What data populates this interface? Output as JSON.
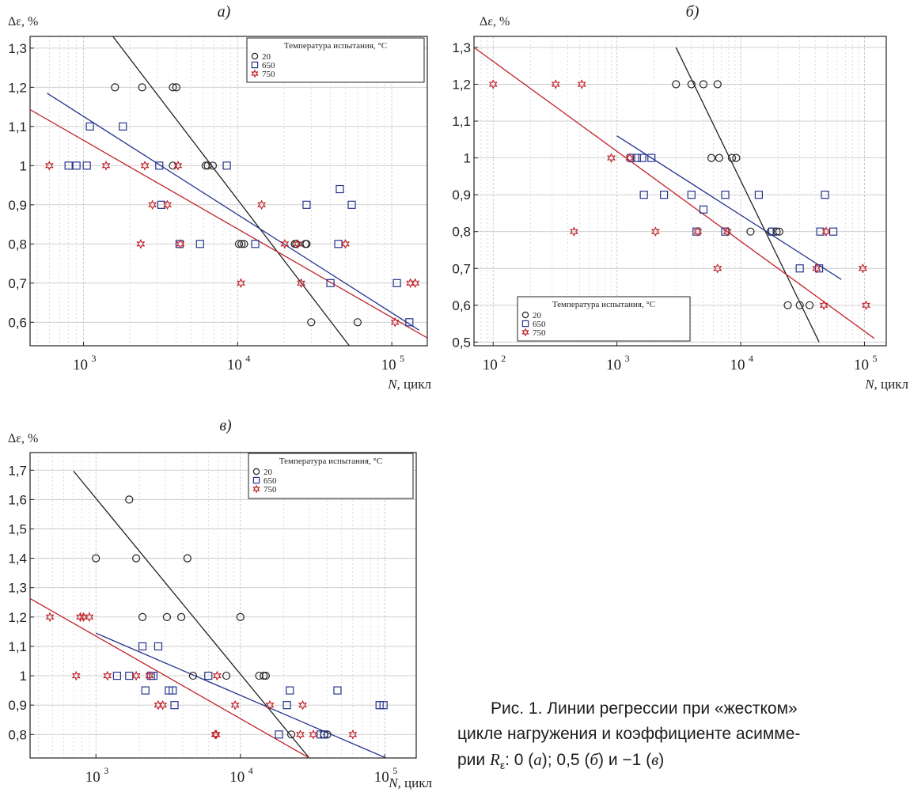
{
  "figure": {
    "caption": {
      "line1": "Рис. 1. Линии регрессии при «жестком»",
      "line2": "цикле нагружения и коэффициенте асимме-",
      "line3_prefix": "рии ",
      "r_symbol": "R",
      "r_sub": "ε",
      "line3_mid1": ": 0 (",
      "a_letter": "а",
      "line3_mid2": "); 0,5 (",
      "b_letter": "б",
      "line3_mid3": ") и −1 (",
      "v_letter": "в",
      "line3_end": ")"
    }
  },
  "colors": {
    "t20": "#222222",
    "t650": "#25338f",
    "t750": "#c0232a",
    "grid": "#c9c9c9",
    "frame": "#222222"
  },
  "chart_data": [
    {
      "id": "a",
      "type": "scatter",
      "title": "а)",
      "ylabel": "Δε, %",
      "xlabel": "N, цикл",
      "x_scale": "log",
      "xlim": [
        450,
        170000
      ],
      "ylim": [
        0.54,
        1.33
      ],
      "x_ticks": [
        {
          "v": 1000,
          "label": "10",
          "exp": "3"
        },
        {
          "v": 10000,
          "label": "10",
          "exp": "4"
        },
        {
          "v": 100000,
          "label": "10",
          "exp": "5"
        }
      ],
      "y_ticks": [
        {
          "v": 0.6,
          "label": "0,6"
        },
        {
          "v": 0.7,
          "label": "0,7"
        },
        {
          "v": 0.8,
          "label": "0,8"
        },
        {
          "v": 0.9,
          "label": "0,9"
        },
        {
          "v": 1.0,
          "label": "1"
        },
        {
          "v": 1.1,
          "label": "1,1"
        },
        {
          "v": 1.2,
          "label": "1,2"
        },
        {
          "v": 1.3,
          "label": "1,3"
        }
      ],
      "legend": {
        "title": "Температура испытания, °С",
        "position": "top-right"
      },
      "series": [
        {
          "name": "20",
          "marker": "circle",
          "color": "#222222",
          "points": [
            [
              1600,
              1.2
            ],
            [
              2400,
              1.2
            ],
            [
              3800,
              1.2
            ],
            [
              4000,
              1.2
            ],
            [
              3800,
              1.0
            ],
            [
              6200,
              1.0
            ],
            [
              6400,
              1.0
            ],
            [
              6900,
              1.0
            ],
            [
              10200,
              0.8
            ],
            [
              10600,
              0.8
            ],
            [
              11000,
              0.8
            ],
            [
              23500,
              0.8
            ],
            [
              24000,
              0.8
            ],
            [
              27500,
              0.8
            ],
            [
              28000,
              0.8
            ],
            [
              30000,
              0.6
            ],
            [
              60000,
              0.6
            ]
          ],
          "line": [
            [
              1550,
              1.33
            ],
            [
              53000,
              0.54
            ]
          ]
        },
        {
          "name": "650",
          "marker": "square",
          "color": "#25338f",
          "points": [
            [
              800,
              1.0
            ],
            [
              900,
              1.0
            ],
            [
              1050,
              1.0
            ],
            [
              1100,
              1.1
            ],
            [
              1800,
              1.1
            ],
            [
              3100,
              1.0
            ],
            [
              3200,
              0.9
            ],
            [
              4200,
              0.8
            ],
            [
              5700,
              0.8
            ],
            [
              8500,
              1.0
            ],
            [
              13000,
              0.8
            ],
            [
              28000,
              0.9
            ],
            [
              40000,
              0.7
            ],
            [
              45000,
              0.8
            ],
            [
              46000,
              0.94
            ],
            [
              55000,
              0.9
            ],
            [
              108000,
              0.7
            ],
            [
              130000,
              0.6
            ]
          ],
          "line": [
            [
              580,
              1.185
            ],
            [
              150000,
              0.58
            ]
          ]
        },
        {
          "name": "750",
          "marker": "star",
          "color": "#c0232a",
          "points": [
            [
              600,
              1.0
            ],
            [
              1400,
              1.0
            ],
            [
              2350,
              0.8
            ],
            [
              2500,
              1.0
            ],
            [
              2800,
              0.9
            ],
            [
              3500,
              0.9
            ],
            [
              4100,
              1.0
            ],
            [
              4250,
              0.8
            ],
            [
              10500,
              0.7
            ],
            [
              14300,
              0.9
            ],
            [
              20200,
              0.8
            ],
            [
              24500,
              0.8
            ],
            [
              25800,
              0.7
            ],
            [
              50000,
              0.8
            ],
            [
              105000,
              0.6
            ],
            [
              132000,
              0.7
            ],
            [
              142000,
              0.7
            ]
          ],
          "line": [
            [
              450,
              1.143
            ],
            [
              170000,
              0.56
            ]
          ]
        }
      ]
    },
    {
      "id": "b",
      "type": "scatter",
      "title": "б)",
      "ylabel": "Δε, %",
      "xlabel": "N, цикл",
      "x_scale": "log",
      "xlim": [
        70,
        150000
      ],
      "ylim": [
        0.49,
        1.33
      ],
      "x_ticks": [
        {
          "v": 100,
          "label": "10",
          "exp": "2"
        },
        {
          "v": 1000,
          "label": "10",
          "exp": "3"
        },
        {
          "v": 10000,
          "label": "10",
          "exp": "4"
        },
        {
          "v": 100000,
          "label": "10",
          "exp": "5"
        }
      ],
      "y_ticks": [
        {
          "v": 0.5,
          "label": "0,5"
        },
        {
          "v": 0.6,
          "label": "0,6"
        },
        {
          "v": 0.7,
          "label": "0,7"
        },
        {
          "v": 0.8,
          "label": "0,8"
        },
        {
          "v": 0.9,
          "label": "0,9"
        },
        {
          "v": 1.0,
          "label": "1"
        },
        {
          "v": 1.1,
          "label": "1,1"
        },
        {
          "v": 1.2,
          "label": "1,2"
        },
        {
          "v": 1.3,
          "label": "1,3"
        }
      ],
      "legend": {
        "title": "Температура испытания, °С",
        "position": "bottom-left"
      },
      "series": [
        {
          "name": "20",
          "marker": "circle",
          "color": "#222222",
          "points": [
            [
              3000,
              1.2
            ],
            [
              4000,
              1.2
            ],
            [
              5000,
              1.2
            ],
            [
              6500,
              1.2
            ],
            [
              5800,
              1.0
            ],
            [
              6700,
              1.0
            ],
            [
              8500,
              1.0
            ],
            [
              9200,
              1.0
            ],
            [
              12000,
              0.8
            ],
            [
              17500,
              0.8
            ],
            [
              19500,
              0.8
            ],
            [
              20500,
              0.8
            ],
            [
              24000,
              0.6
            ],
            [
              30000,
              0.6
            ],
            [
              36000,
              0.6
            ]
          ],
          "line": [
            [
              3000,
              1.3
            ],
            [
              43000,
              0.5
            ]
          ]
        },
        {
          "name": "650",
          "marker": "square",
          "color": "#25338f",
          "points": [
            [
              1300,
              1.0
            ],
            [
              1450,
              1.0
            ],
            [
              1600,
              1.0
            ],
            [
              1900,
              1.0
            ],
            [
              1650,
              0.9
            ],
            [
              2400,
              0.9
            ],
            [
              4000,
              0.9
            ],
            [
              7500,
              0.9
            ],
            [
              14000,
              0.9
            ],
            [
              48000,
              0.9
            ],
            [
              5000,
              0.86
            ],
            [
              4400,
              0.8
            ],
            [
              7500,
              0.8
            ],
            [
              18000,
              0.8
            ],
            [
              44000,
              0.8
            ],
            [
              56000,
              0.8
            ],
            [
              30000,
              0.7
            ],
            [
              43000,
              0.7
            ]
          ],
          "line": [
            [
              1000,
              1.06
            ],
            [
              65000,
              0.67
            ]
          ]
        },
        {
          "name": "750",
          "marker": "star",
          "color": "#c0232a",
          "points": [
            [
              100,
              1.2
            ],
            [
              320,
              1.2
            ],
            [
              520,
              1.2
            ],
            [
              900,
              1.0
            ],
            [
              1270,
              1.0
            ],
            [
              450,
              0.8
            ],
            [
              2050,
              0.8
            ],
            [
              4500,
              0.8
            ],
            [
              7800,
              0.8
            ],
            [
              49000,
              0.8
            ],
            [
              6500,
              0.7
            ],
            [
              41000,
              0.7
            ],
            [
              97000,
              0.7
            ],
            [
              47000,
              0.6
            ],
            [
              103000,
              0.6
            ]
          ],
          "line": [
            [
              70,
              1.3
            ],
            [
              120000,
              0.51
            ]
          ]
        }
      ]
    },
    {
      "id": "c",
      "type": "scatter",
      "title": "в)",
      "ylabel": "Δε, %",
      "xlabel": "N, цикл",
      "x_scale": "log",
      "xlim": [
        350,
        165000
      ],
      "ylim": [
        0.72,
        1.76
      ],
      "x_ticks": [
        {
          "v": 1000,
          "label": "10",
          "exp": "3"
        },
        {
          "v": 10000,
          "label": "10",
          "exp": "4"
        },
        {
          "v": 100000,
          "label": "10",
          "exp": "5"
        }
      ],
      "y_ticks": [
        {
          "v": 0.8,
          "label": "0,8"
        },
        {
          "v": 0.9,
          "label": "0,9"
        },
        {
          "v": 1.0,
          "label": "1"
        },
        {
          "v": 1.1,
          "label": "1,1"
        },
        {
          "v": 1.2,
          "label": "1,2"
        },
        {
          "v": 1.3,
          "label": "1,3"
        },
        {
          "v": 1.4,
          "label": "1,4"
        },
        {
          "v": 1.5,
          "label": "1,5"
        },
        {
          "v": 1.6,
          "label": "1,6"
        },
        {
          "v": 1.7,
          "label": "1,7"
        }
      ],
      "legend": {
        "title": "Температура испытания, °С",
        "position": "top-right"
      },
      "series": [
        {
          "name": "20",
          "marker": "circle",
          "color": "#222222",
          "points": [
            [
              1000,
              1.4
            ],
            [
              1700,
              1.6
            ],
            [
              1900,
              1.4
            ],
            [
              4300,
              1.4
            ],
            [
              2100,
              1.2
            ],
            [
              3100,
              1.2
            ],
            [
              3900,
              1.2
            ],
            [
              10000,
              1.2
            ],
            [
              4700,
              1.0
            ],
            [
              8000,
              1.0
            ],
            [
              13500,
              1.0
            ],
            [
              14500,
              1.0
            ],
            [
              15000,
              1.0
            ],
            [
              22500,
              0.8
            ],
            [
              38000,
              0.8
            ],
            [
              40000,
              0.8
            ]
          ],
          "line": [
            [
              700,
              1.697
            ],
            [
              30000,
              0.72
            ]
          ]
        },
        {
          "name": "650",
          "marker": "square",
          "color": "#25338f",
          "points": [
            [
              2100,
              1.1
            ],
            [
              2700,
              1.1
            ],
            [
              1400,
              1.0
            ],
            [
              1700,
              1.0
            ],
            [
              2400,
              1.0
            ],
            [
              2500,
              1.0
            ],
            [
              6000,
              1.0
            ],
            [
              2200,
              0.95
            ],
            [
              3200,
              0.95
            ],
            [
              3400,
              0.95
            ],
            [
              22000,
              0.95
            ],
            [
              47000,
              0.95
            ],
            [
              3500,
              0.9
            ],
            [
              21000,
              0.9
            ],
            [
              92000,
              0.9
            ],
            [
              98000,
              0.9
            ],
            [
              18500,
              0.8
            ],
            [
              36000,
              0.8
            ],
            [
              38000,
              0.8
            ]
          ],
          "line": [
            [
              1000,
              1.145
            ],
            [
              102000,
              0.72
            ]
          ]
        },
        {
          "name": "750",
          "marker": "star",
          "color": "#c0232a",
          "points": [
            [
              480,
              1.2
            ],
            [
              780,
              1.2
            ],
            [
              820,
              1.2
            ],
            [
              900,
              1.2
            ],
            [
              730,
              1.0
            ],
            [
              1200,
              1.0
            ],
            [
              1900,
              1.0
            ],
            [
              2350,
              1.0
            ],
            [
              6900,
              1.0
            ],
            [
              2700,
              0.9
            ],
            [
              2900,
              0.9
            ],
            [
              9200,
              0.9
            ],
            [
              16000,
              0.9
            ],
            [
              27000,
              0.9
            ],
            [
              6700,
              0.8
            ],
            [
              6800,
              0.8
            ],
            [
              26000,
              0.8
            ],
            [
              32000,
              0.8
            ],
            [
              60000,
              0.8
            ]
          ],
          "line": [
            [
              350,
              1.263
            ],
            [
              30000,
              0.72
            ]
          ]
        }
      ]
    }
  ]
}
